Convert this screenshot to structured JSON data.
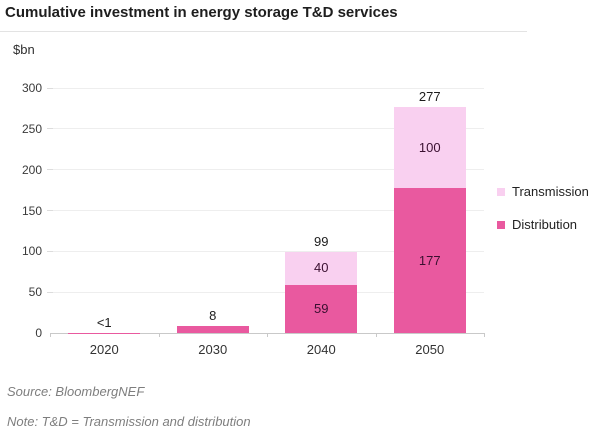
{
  "chart_data": {
    "type": "bar",
    "stacked": true,
    "title": "Cumulative investment in energy storage T&D services",
    "unit_label": "$bn",
    "categories": [
      "2020",
      "2030",
      "2040",
      "2050"
    ],
    "series": [
      {
        "name": "Distribution",
        "color": "#e9599f",
        "values": [
          0.5,
          8,
          59,
          177
        ],
        "labels": [
          "",
          "",
          "59",
          "177"
        ]
      },
      {
        "name": "Transmission",
        "color": "#f9d0f0",
        "values": [
          0,
          0,
          40,
          100
        ],
        "labels": [
          "",
          "",
          "40",
          "100"
        ]
      }
    ],
    "totals": [
      "<1",
      "8",
      "99",
      "277"
    ],
    "ylim": [
      0,
      300
    ],
    "yticks": [
      0,
      50,
      100,
      150,
      200,
      250,
      300
    ],
    "grid": true,
    "legend_position": "right"
  },
  "legend": {
    "items": [
      {
        "label": "Transmission",
        "color": "#f9d0f0"
      },
      {
        "label": "Distribution",
        "color": "#e9599f"
      }
    ]
  },
  "footer": {
    "source": "Source: BloombergNEF",
    "note": "Note: T&D = Transmission and distribution"
  }
}
